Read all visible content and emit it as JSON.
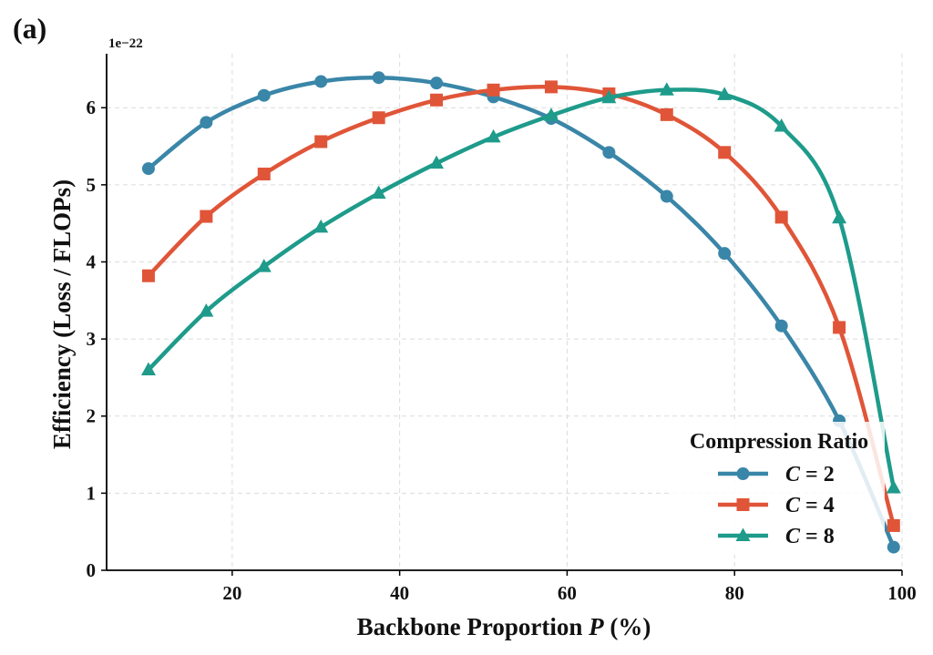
{
  "chart_data": {
    "type": "line",
    "panel_label": "(a)",
    "xlabel_prefix": "Backbone Proportion ",
    "xlabel_var": "P",
    "xlabel_suffix": " (%)",
    "ylabel": "Efficiency (Loss / FLOPs)",
    "y_exponent_label": "1e−22",
    "xlim": [
      5,
      100
    ],
    "ylim": [
      0,
      6.7
    ],
    "x_ticks": [
      20,
      40,
      60,
      80,
      100
    ],
    "y_ticks": [
      0,
      1,
      2,
      3,
      4,
      5,
      6
    ],
    "grid": true,
    "legend_title": "Compression Ratio",
    "legend_position": "bottom-right",
    "series": [
      {
        "name": "C = 2",
        "label_var": "C",
        "label_eq": " = 2",
        "color": "#3a86a8",
        "marker": "circle",
        "x": [
          10,
          16.9,
          23.8,
          30.6,
          37.5,
          44.4,
          51.2,
          58.1,
          65,
          71.9,
          78.8,
          85.6,
          92.5,
          99
        ],
        "y": [
          5.21,
          5.81,
          6.16,
          6.34,
          6.39,
          6.32,
          6.14,
          5.86,
          5.42,
          4.85,
          4.11,
          3.17,
          1.94,
          0.3
        ]
      },
      {
        "name": "C = 4",
        "label_var": "C",
        "label_eq": " = 4",
        "color": "#e05538",
        "marker": "square",
        "x": [
          10,
          16.9,
          23.8,
          30.6,
          37.5,
          44.4,
          51.2,
          58.1,
          65,
          71.9,
          78.8,
          85.6,
          92.5,
          99
        ],
        "y": [
          3.82,
          4.59,
          5.14,
          5.56,
          5.87,
          6.1,
          6.23,
          6.27,
          6.18,
          5.91,
          5.42,
          4.58,
          3.15,
          0.58
        ]
      },
      {
        "name": "C = 8",
        "label_var": "C",
        "label_eq": " = 8",
        "color": "#1e9b8a",
        "marker": "triangle",
        "x": [
          10,
          16.9,
          23.8,
          30.6,
          37.5,
          44.4,
          51.2,
          58.1,
          65,
          71.9,
          78.8,
          85.6,
          92.5,
          99
        ],
        "y": [
          2.6,
          3.36,
          3.94,
          4.45,
          4.89,
          5.28,
          5.62,
          5.9,
          6.13,
          6.23,
          6.17,
          5.76,
          4.57,
          1.07
        ]
      }
    ]
  }
}
